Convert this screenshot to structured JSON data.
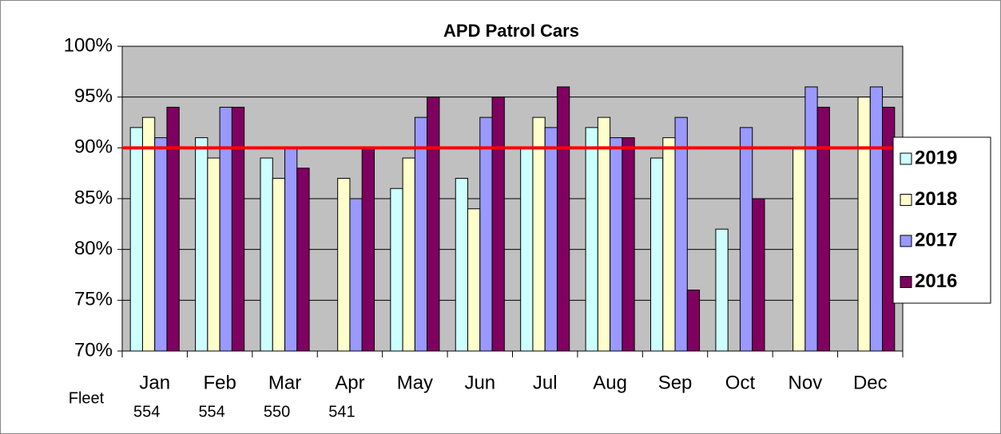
{
  "chart_data": {
    "type": "bar",
    "title": "APD Patrol Cars",
    "categories": [
      "Jan",
      "Feb",
      "Mar",
      "Apr",
      "May",
      "Jun",
      "Jul",
      "Aug",
      "Sep",
      "Oct",
      "Nov",
      "Dec"
    ],
    "series": [
      {
        "name": "2019",
        "color": "#ccffff",
        "values": [
          92,
          91,
          89,
          70,
          86,
          87,
          90,
          92,
          89,
          82,
          null,
          null
        ]
      },
      {
        "name": "2018",
        "color": "#ffffcc",
        "values": [
          93,
          89,
          87,
          87,
          89,
          84,
          93,
          93,
          91,
          null,
          90,
          95
        ]
      },
      {
        "name": "2017",
        "color": "#9999ff",
        "values": [
          91,
          94,
          90,
          85,
          93,
          93,
          92,
          91,
          93,
          92,
          96,
          96
        ]
      },
      {
        "name": "2016",
        "color": "#800060",
        "values": [
          94,
          94,
          88,
          90,
          95,
          95,
          96,
          91,
          76,
          85,
          94,
          94
        ]
      }
    ],
    "ylim": [
      70,
      100
    ],
    "yticks": [
      {
        "value": 70,
        "label": "70%"
      },
      {
        "value": 75,
        "label": "75%"
      },
      {
        "value": 80,
        "label": "80%"
      },
      {
        "value": 85,
        "label": "85%"
      },
      {
        "value": 90,
        "label": "90%"
      },
      {
        "value": 95,
        "label": "95%"
      },
      {
        "value": 100,
        "label": "100%"
      }
    ],
    "grid": true,
    "legend": "right",
    "reference_line": {
      "value": 90,
      "color": "#ff0000"
    },
    "fleet": {
      "label": "Fleet",
      "values": [
        554,
        554,
        550,
        541,
        null,
        null,
        null,
        null,
        null,
        null,
        null,
        null
      ]
    }
  }
}
